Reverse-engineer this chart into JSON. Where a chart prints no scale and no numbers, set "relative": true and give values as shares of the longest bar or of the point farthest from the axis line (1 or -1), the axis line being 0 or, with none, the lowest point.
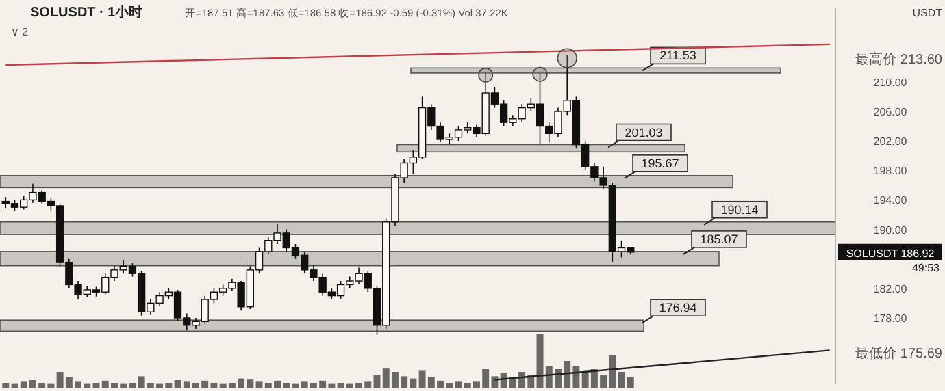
{
  "chart_data": [
    {
      "type": "candlestick",
      "title": "SOLUSDT · 1小时",
      "subtitle": "开=187.51 高=187.63 低=186.58 收=186.92 -0.59 (-0.31%) Vol 37.22K",
      "ylabel": "USDT",
      "categories": [
        null,
        null,
        null,
        null,
        null,
        null,
        null,
        null,
        null,
        null,
        null,
        null,
        null,
        null,
        null,
        null,
        null,
        null,
        null,
        null,
        null,
        null,
        null,
        null,
        null,
        null,
        null,
        null,
        null,
        null,
        null,
        null,
        null,
        null,
        null,
        null,
        null,
        null,
        null,
        null,
        null,
        null,
        null,
        null,
        null,
        null,
        null,
        null,
        null,
        null,
        null,
        null,
        null,
        null,
        null,
        null,
        null,
        null,
        null,
        null,
        null,
        null,
        null,
        null,
        null,
        null,
        null,
        null,
        null,
        null,
        null,
        null,
        null,
        null,
        null,
        null,
        null,
        null,
        null,
        null,
        null,
        null,
        null,
        null,
        null,
        null,
        null,
        null,
        null,
        null,
        null,
        null
      ],
      "ohlc": [
        [
          193.8,
          194.4,
          192.8,
          193.5
        ],
        [
          193.5,
          194.0,
          192.5,
          193.0
        ],
        [
          193.0,
          194.5,
          192.7,
          194.0
        ],
        [
          194.0,
          196.2,
          193.6,
          195.0
        ],
        [
          195.0,
          195.3,
          193.4,
          193.8
        ],
        [
          193.8,
          194.2,
          192.6,
          193.2
        ],
        [
          193.2,
          193.5,
          185.0,
          185.5
        ],
        [
          185.5,
          186.0,
          182.0,
          182.5
        ],
        [
          182.5,
          183.0,
          180.6,
          181.2
        ],
        [
          181.2,
          182.3,
          180.8,
          181.8
        ],
        [
          181.8,
          182.2,
          180.9,
          181.5
        ],
        [
          181.5,
          184.0,
          181.2,
          183.5
        ],
        [
          183.5,
          185.2,
          183.0,
          184.5
        ],
        [
          184.5,
          185.8,
          184.0,
          185.0
        ],
        [
          185.0,
          185.4,
          183.6,
          184.0
        ],
        [
          184.0,
          184.3,
          178.3,
          178.8
        ],
        [
          178.8,
          180.5,
          178.4,
          180.0
        ],
        [
          180.0,
          181.5,
          179.6,
          181.0
        ],
        [
          181.0,
          182.0,
          180.5,
          181.5
        ],
        [
          181.5,
          181.8,
          177.6,
          178.0
        ],
        [
          178.0,
          178.6,
          176.3,
          177.0
        ],
        [
          177.0,
          178.0,
          176.5,
          177.5
        ],
        [
          177.5,
          181.0,
          177.2,
          180.5
        ],
        [
          180.5,
          182.0,
          180.0,
          181.5
        ],
        [
          181.5,
          182.5,
          181.0,
          182.0
        ],
        [
          182.0,
          183.3,
          181.6,
          182.8
        ],
        [
          182.8,
          183.0,
          179.0,
          179.5
        ],
        [
          179.5,
          185.0,
          179.2,
          184.5
        ],
        [
          184.5,
          187.5,
          184.0,
          187.0
        ],
        [
          187.0,
          189.0,
          186.6,
          188.5
        ],
        [
          188.5,
          190.8,
          188.0,
          189.5
        ],
        [
          189.5,
          190.0,
          187.0,
          187.5
        ],
        [
          187.5,
          188.0,
          186.0,
          186.5
        ],
        [
          186.5,
          187.0,
          184.0,
          184.5
        ],
        [
          184.5,
          185.2,
          183.0,
          183.5
        ],
        [
          183.5,
          184.0,
          181.0,
          181.5
        ],
        [
          181.5,
          182.0,
          180.5,
          181.0
        ],
        [
          181.0,
          183.0,
          180.6,
          182.5
        ],
        [
          182.5,
          183.6,
          182.0,
          183.0
        ],
        [
          183.0,
          184.8,
          182.6,
          184.0
        ],
        [
          184.0,
          184.4,
          181.5,
          182.0
        ],
        [
          182.0,
          182.3,
          175.69,
          177.0
        ],
        [
          177.0,
          191.5,
          176.5,
          191.0
        ],
        [
          191.0,
          197.5,
          190.5,
          197.0
        ],
        [
          197.0,
          199.5,
          196.3,
          199.0
        ],
        [
          199.0,
          200.8,
          197.5,
          199.8
        ],
        [
          199.8,
          208.0,
          199.5,
          206.5
        ],
        [
          206.5,
          207.0,
          203.5,
          204.0
        ],
        [
          204.0,
          204.5,
          201.8,
          202.2
        ],
        [
          202.2,
          203.0,
          201.6,
          202.5
        ],
        [
          202.5,
          204.0,
          202.0,
          203.5
        ],
        [
          203.5,
          204.5,
          203.0,
          203.8
        ],
        [
          203.8,
          204.2,
          202.5,
          203.0
        ],
        [
          203.0,
          211.3,
          202.7,
          208.5
        ],
        [
          208.5,
          209.3,
          206.5,
          207.0
        ],
        [
          207.0,
          207.5,
          204.0,
          204.5
        ],
        [
          204.5,
          205.5,
          204.0,
          205.0
        ],
        [
          205.0,
          207.0,
          204.6,
          206.5
        ],
        [
          206.5,
          207.8,
          206.0,
          207.0
        ],
        [
          207.0,
          211.4,
          201.6,
          204.0
        ],
        [
          204.0,
          204.5,
          201.8,
          203.0
        ],
        [
          203.0,
          206.5,
          202.5,
          206.0
        ],
        [
          206.0,
          213.6,
          205.5,
          207.5
        ],
        [
          207.5,
          208.0,
          201.0,
          201.5
        ],
        [
          201.5,
          202.0,
          198.0,
          198.5
        ],
        [
          198.5,
          199.0,
          196.5,
          197.0
        ],
        [
          197.0,
          198.5,
          195.5,
          196.0
        ],
        [
          196.0,
          196.3,
          185.6,
          187.0
        ],
        [
          187.0,
          188.5,
          186.2,
          187.5
        ],
        [
          187.51,
          187.63,
          186.58,
          186.92
        ],
        null,
        null,
        null,
        null,
        null,
        null,
        null,
        null,
        null,
        null,
        null,
        null,
        null,
        null,
        null,
        null,
        null,
        null,
        null,
        null,
        null,
        null
      ],
      "series": [
        {
          "type": "line",
          "color": "#c0404a",
          "values": [
            212.3,
            null,
            null,
            null,
            null,
            null,
            null,
            null,
            null,
            null,
            null,
            null,
            null,
            null,
            null,
            null,
            null,
            null,
            null,
            null,
            null,
            null,
            null,
            null,
            null,
            null,
            null,
            null,
            null,
            null,
            null,
            null,
            null,
            null,
            null,
            null,
            null,
            null,
            null,
            null,
            null,
            null,
            null,
            null,
            null,
            null,
            null,
            null,
            null,
            null,
            null,
            null,
            null,
            null,
            null,
            null,
            null,
            null,
            null,
            null,
            null,
            null,
            null,
            null,
            null,
            null,
            null,
            null,
            null,
            null,
            null,
            null,
            null,
            null,
            null,
            null,
            null,
            null,
            null,
            null,
            null,
            null,
            null,
            null,
            null,
            null,
            null,
            null,
            null,
            null,
            null,
            215.1
          ]
        },
        {
          "type": "line",
          "color": "#222222",
          "values": [
            null,
            null,
            null,
            null,
            null,
            null,
            null,
            null,
            null,
            null,
            null,
            null,
            null,
            null,
            null,
            null,
            null,
            null,
            null,
            null,
            null,
            null,
            null,
            null,
            null,
            null,
            null,
            null,
            null,
            null,
            null,
            null,
            null,
            null,
            null,
            null,
            null,
            null,
            null,
            null,
            null,
            null,
            null,
            null,
            null,
            null,
            null,
            null,
            null,
            null,
            null,
            null,
            null,
            null,
            169.6,
            null,
            null,
            null,
            null,
            null,
            null,
            null,
            null,
            null,
            null,
            null,
            null,
            null,
            null,
            null,
            null,
            null,
            null,
            null,
            null,
            null,
            null,
            null,
            null,
            null,
            null,
            null,
            null,
            null,
            null,
            null,
            null,
            null,
            null,
            null,
            null,
            173.6
          ]
        }
      ],
      "ylim": [
        169,
        220
      ],
      "yticks": [
        {
          "value": 178,
          "label": "178.00"
        },
        {
          "value": 182,
          "label": "182.00"
        },
        {
          "value": 190,
          "label": "190.00"
        },
        {
          "value": 194,
          "label": "194.00"
        },
        {
          "value": 198,
          "label": "198.00"
        },
        {
          "value": 202,
          "label": "202.00"
        },
        {
          "value": 206,
          "label": "206.00"
        },
        {
          "value": 210,
          "label": "210.00"
        }
      ],
      "bands": [
        {
          "axis": "y",
          "from": 211.2,
          "to": 211.9,
          "label": "211.53",
          "color": "#c9c5bf"
        },
        {
          "axis": "y",
          "from": 200.5,
          "to": 201.5,
          "label": "201.03",
          "color": "#c9c5bf"
        },
        {
          "axis": "y",
          "from": 195.67,
          "to": 197.3,
          "label": "195.67",
          "color": "#c9c5bf"
        },
        {
          "axis": "y",
          "from": 189.3,
          "to": 191.0,
          "label": "190.14",
          "color": "#c9c5bf"
        },
        {
          "axis": "y",
          "from": 185.07,
          "to": 187.0,
          "label": "185.07",
          "color": "#c9c5bf"
        },
        {
          "axis": "y",
          "from": 176.2,
          "to": 177.7,
          "label": "176.94",
          "color": "#c9c5bf"
        }
      ],
      "annotations": [
        "∨ 2",
        "49:53",
        "最高价 213.60",
        "最低价 175.69",
        "SOLUSDT 186.92"
      ],
      "grid": false,
      "legend": false
    },
    {
      "type": "bar",
      "relative": true,
      "color": "#3a3a3a",
      "categories": [
        null,
        null,
        null,
        null,
        null,
        null,
        null,
        null,
        null,
        null,
        null,
        null,
        null,
        null,
        null,
        null,
        null,
        null,
        null,
        null,
        null,
        null,
        null,
        null,
        null,
        null,
        null,
        null,
        null,
        null,
        null,
        null,
        null,
        null,
        null,
        null,
        null,
        null,
        null,
        null,
        null,
        null,
        null,
        null,
        null,
        null,
        null,
        null,
        null,
        null,
        null,
        null,
        null,
        null,
        null,
        null,
        null,
        null,
        null,
        null,
        null,
        null,
        null,
        null,
        null,
        null,
        null,
        null,
        null,
        null,
        null,
        null,
        null,
        null,
        null,
        null,
        null,
        null,
        null,
        null,
        null,
        null,
        null,
        null,
        null,
        null,
        null,
        null,
        null,
        null,
        null,
        null
      ],
      "values": [
        0.1,
        0.08,
        0.12,
        0.15,
        0.1,
        0.08,
        0.3,
        0.2,
        0.12,
        0.08,
        0.1,
        0.14,
        0.1,
        0.08,
        0.1,
        0.22,
        0.1,
        0.08,
        0.1,
        0.15,
        0.12,
        0.1,
        0.14,
        0.1,
        0.08,
        0.1,
        0.18,
        0.16,
        0.12,
        0.1,
        0.14,
        0.1,
        0.08,
        0.12,
        0.1,
        0.14,
        0.08,
        0.1,
        0.08,
        0.1,
        0.12,
        0.25,
        0.36,
        0.3,
        0.22,
        0.18,
        0.32,
        0.2,
        0.14,
        0.1,
        0.12,
        0.1,
        0.12,
        0.35,
        0.22,
        0.28,
        0.2,
        0.3,
        0.25,
        1.0,
        0.4,
        0.35,
        0.5,
        0.4,
        0.3,
        0.35,
        0.25,
        0.6,
        0.3,
        0.2,
        null,
        null,
        null,
        null,
        null,
        null,
        null,
        null,
        null,
        null,
        null,
        null,
        null,
        null,
        null,
        null,
        null,
        null,
        null,
        null,
        null,
        null
      ]
    }
  ]
}
